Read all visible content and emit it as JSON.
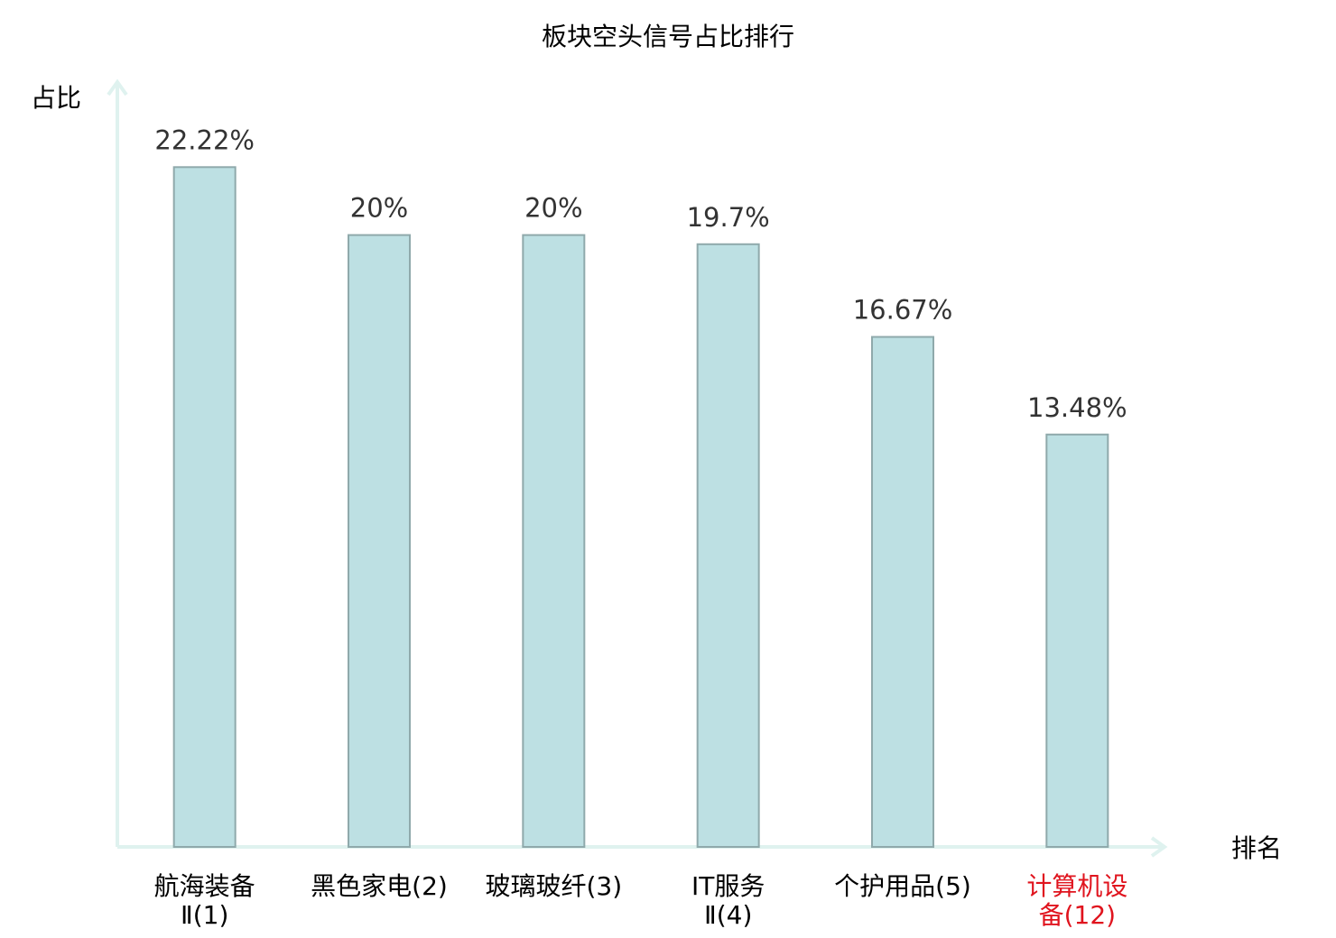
{
  "chart_data": {
    "type": "bar",
    "title": "板块空头信号占比排行",
    "y_label": "占比",
    "x_label": "排名",
    "categories": [
      [
        "航海装备",
        "Ⅱ(1)"
      ],
      [
        "黑色家电(2)"
      ],
      [
        "玻璃玻纤(3)"
      ],
      [
        "IT服务",
        "Ⅱ(4)"
      ],
      [
        "个护用品(5)"
      ],
      [
        "计算机设",
        "备(12)"
      ]
    ],
    "category_colors": [
      "#000000",
      "#000000",
      "#000000",
      "#000000",
      "#000000",
      "#e0141e"
    ],
    "values": [
      22.22,
      20,
      20,
      19.7,
      16.67,
      13.48
    ],
    "value_labels": [
      "22.22%",
      "20%",
      "20%",
      "19.7%",
      "16.67%",
      "13.48%"
    ],
    "color": "#bde0e3",
    "edge_color": "#8fa9ab",
    "axis_color": "#dff2ef",
    "ylim": [
      0,
      25
    ],
    "grid": false
  }
}
